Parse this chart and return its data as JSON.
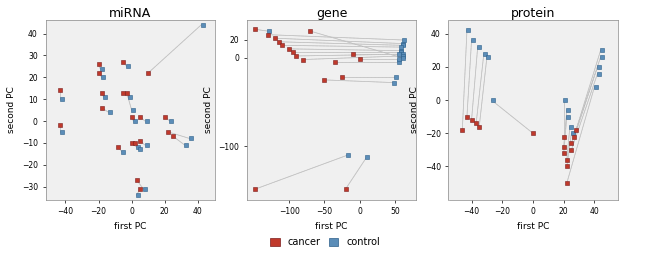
{
  "panels": [
    {
      "title": "miRNA",
      "xlabel": "first PC",
      "ylabel": "second PC",
      "xlim": [
        -52,
        50
      ],
      "ylim": [
        -36,
        46
      ],
      "xticks": [
        -40,
        -20,
        0,
        20,
        40
      ],
      "yticks": [
        -30,
        -20,
        -10,
        0,
        10,
        20,
        30,
        40
      ],
      "pairs": [
        {
          "cancer": [
            -43,
            14
          ],
          "control": [
            -43,
            10
          ]
        },
        {
          "cancer": [
            -43,
            -2
          ],
          "control": [
            -43,
            -5
          ]
        },
        {
          "cancer": [
            -20,
            26
          ],
          "control": [
            -19,
            24
          ]
        },
        {
          "cancer": [
            -20,
            22
          ],
          "control": [
            -18,
            20
          ]
        },
        {
          "cancer": [
            -18,
            13
          ],
          "control": [
            -17,
            11
          ]
        },
        {
          "cancer": [
            -18,
            6
          ],
          "control": [
            -14,
            4
          ]
        },
        {
          "cancer": [
            -8,
            -12
          ],
          "control": [
            -6,
            -14
          ]
        },
        {
          "cancer": [
            -5,
            27
          ],
          "control": [
            -3,
            25
          ]
        },
        {
          "cancer": [
            -5,
            13
          ],
          "control": [
            -2,
            11
          ]
        },
        {
          "cancer": [
            -3,
            13
          ],
          "control": [
            0,
            5
          ]
        },
        {
          "cancer": [
            0,
            2
          ],
          "control": [
            1,
            0
          ]
        },
        {
          "cancer": [
            0,
            -10
          ],
          "control": [
            3,
            -12
          ]
        },
        {
          "cancer": [
            2,
            -10
          ],
          "control": [
            4,
            -13
          ]
        },
        {
          "cancer": [
            5,
            2
          ],
          "control": [
            8,
            0
          ]
        },
        {
          "cancer": [
            5,
            -9
          ],
          "control": [
            8,
            -11
          ]
        },
        {
          "cancer": [
            10,
            22
          ],
          "control": [
            42,
            44
          ]
        },
        {
          "cancer": [
            20,
            2
          ],
          "control": [
            23,
            0
          ]
        },
        {
          "cancer": [
            22,
            -5
          ],
          "control": [
            35,
            -8
          ]
        },
        {
          "cancer": [
            25,
            -7
          ],
          "control": [
            32,
            -11
          ]
        },
        {
          "cancer": [
            3,
            -27
          ],
          "control": [
            7,
            -31
          ]
        },
        {
          "cancer": [
            5,
            -31
          ],
          "control": [
            3,
            -34
          ]
        }
      ]
    },
    {
      "title": "gene",
      "xlabel": "first PC",
      "ylabel": "second PC",
      "xlim": [
        -160,
        80
      ],
      "ylim": [
        -160,
        42
      ],
      "xticks": [
        -100,
        -50,
        0,
        50
      ],
      "yticks": [
        -100,
        0,
        20
      ],
      "pairs": [
        {
          "cancer": [
            -148,
            32
          ],
          "control": [
            -130,
            30
          ]
        },
        {
          "cancer": [
            -130,
            26
          ],
          "control": [
            60,
            20
          ]
        },
        {
          "cancer": [
            -120,
            22
          ],
          "control": [
            60,
            16
          ]
        },
        {
          "cancer": [
            -115,
            18
          ],
          "control": [
            60,
            14
          ]
        },
        {
          "cancer": [
            -110,
            14
          ],
          "control": [
            58,
            12
          ]
        },
        {
          "cancer": [
            -100,
            10
          ],
          "control": [
            58,
            8
          ]
        },
        {
          "cancer": [
            -95,
            6
          ],
          "control": [
            58,
            6
          ]
        },
        {
          "cancer": [
            -90,
            2
          ],
          "control": [
            60,
            4
          ]
        },
        {
          "cancer": [
            -80,
            -2
          ],
          "control": [
            60,
            2
          ]
        },
        {
          "cancer": [
            -70,
            30
          ],
          "control": [
            60,
            0
          ]
        },
        {
          "cancer": [
            -35,
            -5
          ],
          "control": [
            55,
            -5
          ]
        },
        {
          "cancer": [
            -25,
            -22
          ],
          "control": [
            50,
            -22
          ]
        },
        {
          "cancer": [
            -10,
            4
          ],
          "control": [
            55,
            4
          ]
        },
        {
          "cancer": [
            0,
            -1
          ],
          "control": [
            55,
            -1
          ]
        },
        {
          "cancer": [
            -50,
            -25
          ],
          "control": [
            48,
            -28
          ]
        },
        {
          "cancer": [
            -148,
            -148
          ],
          "control": [
            -18,
            -110
          ]
        },
        {
          "cancer": [
            -20,
            -148
          ],
          "control": [
            10,
            -112
          ]
        }
      ]
    },
    {
      "title": "protein",
      "xlabel": "first PC",
      "ylabel": "second PC",
      "xlim": [
        -55,
        55
      ],
      "ylim": [
        -60,
        48
      ],
      "xticks": [
        -40,
        -20,
        0,
        20,
        40
      ],
      "yticks": [
        -40,
        -20,
        0,
        20,
        40
      ],
      "pairs": [
        {
          "cancer": [
            -46,
            -18
          ],
          "control": [
            -43,
            42
          ]
        },
        {
          "cancer": [
            -43,
            -10
          ],
          "control": [
            -40,
            36
          ]
        },
        {
          "cancer": [
            -40,
            -12
          ],
          "control": [
            -36,
            32
          ]
        },
        {
          "cancer": [
            -37,
            -14
          ],
          "control": [
            -32,
            28
          ]
        },
        {
          "cancer": [
            -35,
            -16
          ],
          "control": [
            -30,
            26
          ]
        },
        {
          "cancer": [
            0,
            -20
          ],
          "control": [
            -27,
            0
          ]
        },
        {
          "cancer": [
            20,
            -22
          ],
          "control": [
            20,
            0
          ]
        },
        {
          "cancer": [
            20,
            -28
          ],
          "control": [
            22,
            -6
          ]
        },
        {
          "cancer": [
            20,
            -32
          ],
          "control": [
            22,
            -10
          ]
        },
        {
          "cancer": [
            22,
            -36
          ],
          "control": [
            24,
            -16
          ]
        },
        {
          "cancer": [
            22,
            -40
          ],
          "control": [
            25,
            -20
          ]
        },
        {
          "cancer": [
            22,
            -50
          ],
          "control": [
            40,
            8
          ]
        },
        {
          "cancer": [
            25,
            -30
          ],
          "control": [
            42,
            16
          ]
        },
        {
          "cancer": [
            25,
            -26
          ],
          "control": [
            42,
            20
          ]
        },
        {
          "cancer": [
            27,
            -22
          ],
          "control": [
            44,
            26
          ]
        },
        {
          "cancer": [
            28,
            -18
          ],
          "control": [
            44,
            30
          ]
        }
      ]
    }
  ],
  "cancer_color": "#c0392b",
  "control_color": "#5b8db8",
  "line_color": "#b0b0b0",
  "background_color": "#ffffff",
  "plot_bg_color": "#f0f0f0"
}
